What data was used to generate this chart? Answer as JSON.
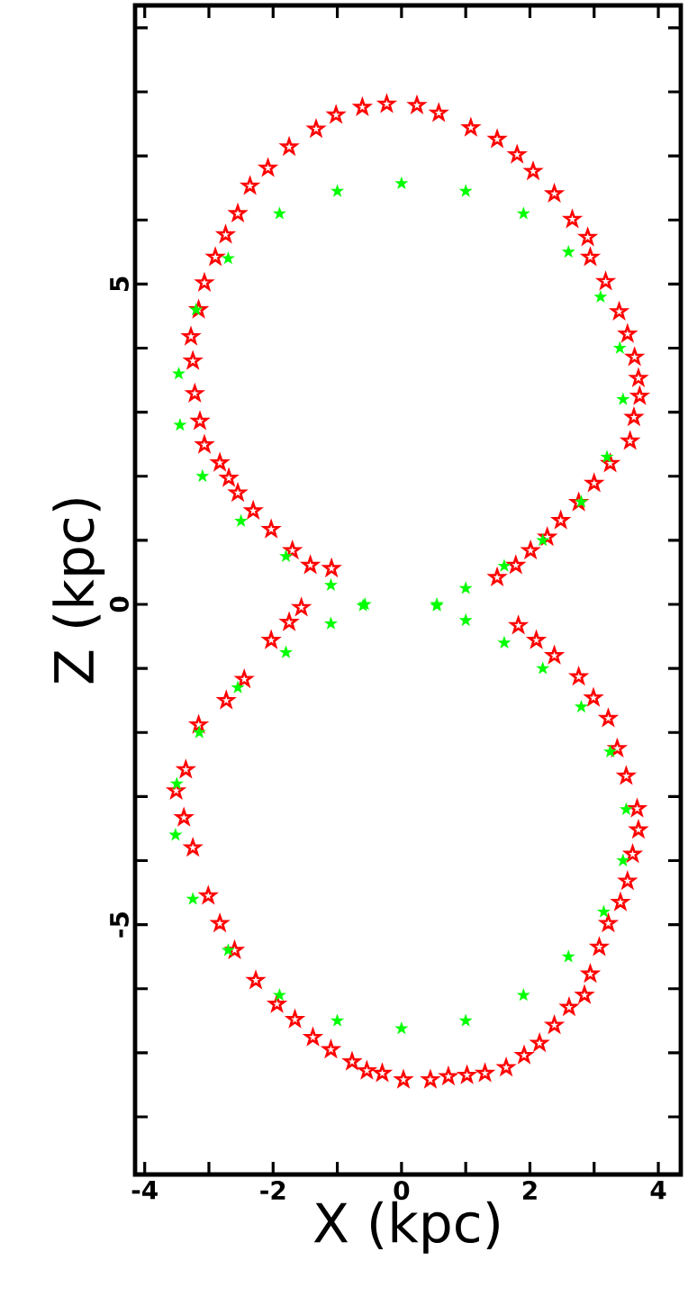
{
  "chart_data": {
    "type": "scatter",
    "xlabel": "X (kpc)",
    "ylabel": "Z (kpc)",
    "xlim": [
      -4.15,
      4.35
    ],
    "ylim": [
      -8.9,
      9.35
    ],
    "xticks": [
      -4,
      {
        "value": -3,
        "label": null
      },
      -2,
      {
        "value": -1,
        "label": null
      },
      0,
      {
        "value": 1,
        "label": null
      },
      2,
      {
        "value": 3,
        "label": null
      },
      4
    ],
    "yticks": [
      {
        "value": -8,
        "label": null
      },
      {
        "value": -7,
        "label": null
      },
      {
        "value": -6,
        "label": null
      },
      -5,
      {
        "value": -4,
        "label": null
      },
      {
        "value": -3,
        "label": null
      },
      {
        "value": -2,
        "label": null
      },
      {
        "value": -1,
        "label": null
      },
      0,
      {
        "value": 1,
        "label": null
      },
      {
        "value": 2,
        "label": null
      },
      {
        "value": 3,
        "label": null
      },
      {
        "value": 4,
        "label": null
      },
      5,
      {
        "value": 6,
        "label": null
      },
      {
        "value": 7,
        "label": null
      },
      {
        "value": 8,
        "label": null
      },
      {
        "value": 9,
        "label": null
      }
    ],
    "marker": "star",
    "series": [
      {
        "color": "#ff0000",
        "x": [
          -1.09,
          -1.42,
          -1.7,
          -2.03,
          -2.31,
          -2.55,
          -2.69,
          -2.83,
          -3.07,
          -3.14,
          -3.22,
          -3.25,
          -3.28,
          -3.16,
          -3.07,
          -2.9,
          -2.74,
          -2.55,
          -2.36,
          -2.08,
          -1.75,
          -1.33,
          -1.02,
          -0.61,
          -0.23,
          0.24,
          0.58,
          1.08,
          1.49,
          1.8,
          2.05,
          2.38,
          2.66,
          2.9,
          2.94,
          3.18,
          3.39,
          3.52,
          3.63,
          3.69,
          3.71,
          3.62,
          3.56,
          3.25,
          3.0,
          2.76,
          2.48,
          2.27,
          2.01,
          1.78,
          1.49,
          -1.56,
          -1.75,
          -2.03,
          -2.45,
          -2.73,
          -3.16,
          -3.36,
          -3.51,
          -3.39,
          -3.25,
          -3.01,
          -2.83,
          -2.6,
          -2.27,
          -1.94,
          -1.66,
          -1.38,
          -1.1,
          -0.77,
          -0.54,
          -0.3,
          0.03,
          0.45,
          0.73,
          1.02,
          1.3,
          1.63,
          1.91,
          2.15,
          2.38,
          2.61,
          2.85,
          2.94,
          3.08,
          3.22,
          3.41,
          3.52,
          3.6,
          3.69,
          3.67,
          3.5,
          3.36,
          3.22,
          2.99,
          2.76,
          2.38,
          2.1,
          1.82
        ],
        "values": [
          0.56,
          0.61,
          0.84,
          1.17,
          1.46,
          1.74,
          1.97,
          2.21,
          2.49,
          2.86,
          3.29,
          3.8,
          4.18,
          4.6,
          5.02,
          5.42,
          5.77,
          6.1,
          6.53,
          6.81,
          7.14,
          7.42,
          7.64,
          7.76,
          7.81,
          7.79,
          7.67,
          7.44,
          7.26,
          7.02,
          6.76,
          6.41,
          6.01,
          5.73,
          5.42,
          5.04,
          4.57,
          4.22,
          3.86,
          3.53,
          3.25,
          2.92,
          2.55,
          2.2,
          1.89,
          1.59,
          1.31,
          1.05,
          0.84,
          0.61,
          0.42,
          -0.05,
          -0.28,
          -0.56,
          -1.17,
          -1.5,
          -1.88,
          -2.58,
          -2.91,
          -3.33,
          -3.8,
          -4.55,
          -4.98,
          -5.4,
          -5.87,
          -6.24,
          -6.48,
          -6.76,
          -6.95,
          -7.14,
          -7.28,
          -7.32,
          -7.42,
          -7.42,
          -7.37,
          -7.35,
          -7.32,
          -7.23,
          -7.04,
          -6.85,
          -6.57,
          -6.29,
          -6.1,
          -5.77,
          -5.35,
          -4.98,
          -4.65,
          -4.32,
          -3.9,
          -3.52,
          -3.19,
          -2.68,
          -2.25,
          -1.78,
          -1.46,
          -1.13,
          -0.8,
          -0.56,
          -0.33
        ]
      },
      {
        "color": "#00ff00",
        "x": [
          0.55,
          1.0,
          1.6,
          2.2,
          2.8,
          3.2,
          3.45,
          3.4,
          3.1,
          2.6,
          1.9,
          1.0,
          0.0,
          -1.0,
          -1.9,
          -2.7,
          -3.2,
          -3.47,
          -3.45,
          -3.1,
          -2.5,
          -1.8,
          -1.1,
          -0.57,
          0.55,
          1.0,
          1.6,
          2.2,
          2.8,
          3.25,
          3.5,
          3.45,
          3.15,
          2.6,
          1.9,
          1.0,
          0.0,
          -1.0,
          -1.9,
          -2.7,
          -3.25,
          -3.52,
          -3.5,
          -3.15,
          -2.55,
          -1.8,
          -1.1,
          -0.6
        ],
        "values": [
          0.0,
          0.25,
          0.6,
          1.0,
          1.6,
          2.3,
          3.2,
          4.0,
          4.8,
          5.5,
          6.1,
          6.45,
          6.57,
          6.45,
          6.1,
          5.4,
          4.6,
          3.6,
          2.8,
          2.0,
          1.3,
          0.75,
          0.3,
          0.0,
          -0.02,
          -0.25,
          -0.6,
          -1.0,
          -1.6,
          -2.3,
          -3.2,
          -4.0,
          -4.8,
          -5.5,
          -6.1,
          -6.5,
          -6.62,
          -6.5,
          -6.1,
          -5.4,
          -4.6,
          -3.6,
          -2.8,
          -2.0,
          -1.3,
          -0.75,
          -0.3,
          -0.02
        ]
      }
    ]
  }
}
